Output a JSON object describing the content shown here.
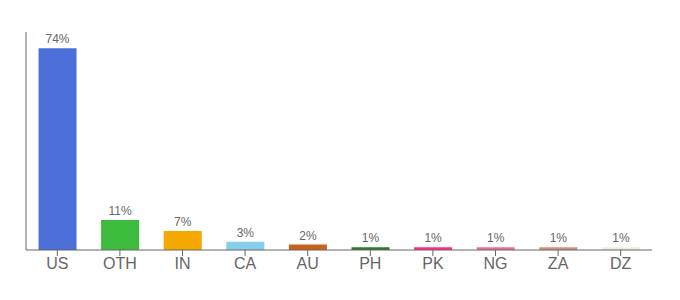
{
  "chart_data": {
    "type": "bar",
    "categories": [
      "US",
      "OTH",
      "IN",
      "CA",
      "AU",
      "PH",
      "PK",
      "NG",
      "ZA",
      "DZ"
    ],
    "values": [
      74,
      11,
      7,
      3,
      2,
      1,
      1,
      1,
      1,
      1
    ],
    "value_labels": [
      "74%",
      "11%",
      "7%",
      "3%",
      "2%",
      "1%",
      "1%",
      "1%",
      "1%",
      "1%"
    ],
    "colors": [
      "#4d6fda",
      "#3dbb3d",
      "#f5a800",
      "#87ceeb",
      "#c8621a",
      "#2a7a2a",
      "#ff2d8a",
      "#e87090",
      "#d09080",
      "#f0eedc"
    ],
    "ylim": [
      0,
      80
    ],
    "data_labels": true,
    "tick_labels": "x",
    "grid": false
  }
}
